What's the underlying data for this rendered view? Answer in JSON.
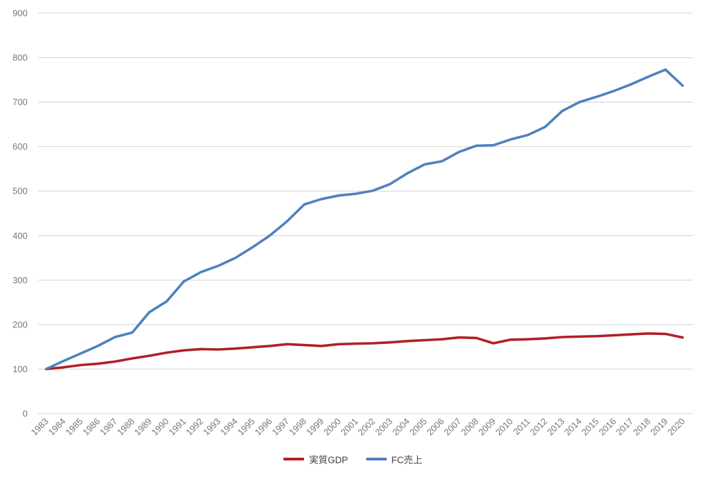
{
  "chart_data": {
    "type": "line",
    "title": "",
    "xlabel": "",
    "ylabel": "",
    "x": [
      1983,
      1984,
      1985,
      1986,
      1987,
      1988,
      1989,
      1990,
      1991,
      1992,
      1993,
      1994,
      1995,
      1996,
      1997,
      1998,
      1999,
      2000,
      2001,
      2002,
      2003,
      2004,
      2005,
      2006,
      2007,
      2008,
      2009,
      2010,
      2011,
      2012,
      2013,
      2014,
      2015,
      2016,
      2017,
      2018,
      2019,
      2020
    ],
    "series": [
      {
        "name": "実質GDP",
        "color": "#b02025",
        "values": [
          100,
          104,
          109,
          112,
          117,
          124,
          130,
          137,
          142,
          145,
          144,
          146,
          149,
          152,
          156,
          154,
          152,
          156,
          157,
          158,
          160,
          163,
          165,
          167,
          171,
          170,
          158,
          166,
          167,
          169,
          172,
          173,
          174,
          176,
          178,
          180,
          179,
          171
        ]
      },
      {
        "name": "FC売上",
        "color": "#4f81bd",
        "values": [
          100,
          118,
          135,
          152,
          172,
          182,
          228,
          252,
          297,
          318,
          332,
          350,
          374,
          400,
          432,
          470,
          482,
          490,
          494,
          501,
          516,
          540,
          560,
          567,
          588,
          602,
          603,
          616,
          626,
          644,
          680,
          700,
          712,
          725,
          740,
          757,
          773,
          737
        ]
      }
    ],
    "ylim": [
      0,
      900
    ],
    "ytick_step": 100,
    "grid": true,
    "legend_position": "bottom",
    "gridline_color": "#d9d9d9",
    "tick_label_color": "#757575",
    "legend_text_color": "#404040",
    "background": "#ffffff"
  }
}
